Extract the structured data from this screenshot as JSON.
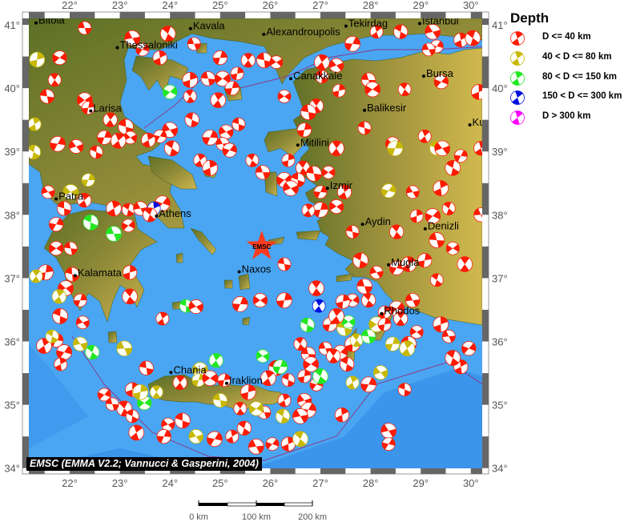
{
  "map": {
    "lon_range": [
      21.19,
      30.23
    ],
    "lat_range": [
      34.0,
      41.1
    ],
    "lon_ticks": [
      22,
      23,
      24,
      25,
      26,
      27,
      28,
      29,
      30
    ],
    "lat_ticks": [
      34,
      35,
      36,
      37,
      38,
      39,
      40,
      41
    ],
    "tick_suffix": "°",
    "colors": {
      "sea": "#4aa6f2",
      "deep_sea": "#2f86e6",
      "land_low": "#5f7228",
      "land_high": "#c9b24a",
      "plate_boundary": "#8a3a8a"
    }
  },
  "caption": "EMSC (EMMA V2.2; Vannucci & Gasperini, 2004)",
  "marker": {
    "label": "EMSC",
    "lon": 25.83,
    "lat": 37.5,
    "color": "#ff3b1f"
  },
  "legend": {
    "title": "Depth",
    "items": [
      {
        "label": "D <= 40 km",
        "color": "#ff1a00"
      },
      {
        "label": "40 < D <= 80 km",
        "color": "#c8b800"
      },
      {
        "label": "80 < D <= 150 km",
        "color": "#22e822"
      },
      {
        "label": "150 < D <= 300 km",
        "color": "#0010e0"
      },
      {
        "label": "D > 300 km",
        "color": "#ff00ff"
      }
    ]
  },
  "scale_bar": {
    "labels": [
      "0 km",
      "100 km",
      "200 km"
    ]
  },
  "cities": [
    {
      "name": "Bitola",
      "lon": 21.33,
      "lat": 41.03
    },
    {
      "name": "Kavala",
      "lon": 24.41,
      "lat": 40.94
    },
    {
      "name": "Alexandroupolis",
      "lon": 25.87,
      "lat": 40.85
    },
    {
      "name": "Tekirdag",
      "lon": 27.51,
      "lat": 40.98
    },
    {
      "name": "Istanbul",
      "lon": 28.98,
      "lat": 41.02
    },
    {
      "name": "Thessaloniki",
      "lon": 22.95,
      "lat": 40.64
    },
    {
      "name": "Canakkale",
      "lon": 26.41,
      "lat": 40.15
    },
    {
      "name": "Bursa",
      "lon": 29.06,
      "lat": 40.19
    },
    {
      "name": "Larisa",
      "lon": 22.42,
      "lat": 39.64
    },
    {
      "name": "Balikesir",
      "lon": 27.88,
      "lat": 39.65
    },
    {
      "name": "Kutahya",
      "lon": 29.98,
      "lat": 39.42
    },
    {
      "name": "Mitilini",
      "lon": 26.55,
      "lat": 39.1
    },
    {
      "name": "Izmir",
      "lon": 27.14,
      "lat": 38.42
    },
    {
      "name": "Athens",
      "lon": 23.73,
      "lat": 37.98
    },
    {
      "name": "Aydin",
      "lon": 27.84,
      "lat": 37.85
    },
    {
      "name": "Denizli",
      "lon": 29.09,
      "lat": 37.78
    },
    {
      "name": "Patra",
      "lon": 21.73,
      "lat": 38.25
    },
    {
      "name": "Naxos",
      "lon": 25.38,
      "lat": 37.1
    },
    {
      "name": "Mugla",
      "lon": 28.36,
      "lat": 37.21
    },
    {
      "name": "Kalamata",
      "lon": 22.11,
      "lat": 37.04
    },
    {
      "name": "Rhodos",
      "lon": 28.22,
      "lat": 36.44
    },
    {
      "name": "Chania",
      "lon": 24.02,
      "lat": 35.51
    },
    {
      "name": "Iraklion",
      "lon": 25.13,
      "lat": 35.34
    }
  ],
  "events": [
    [
      22.3,
      40.95,
      0
    ],
    [
      21.8,
      40.48,
      0
    ],
    [
      21.35,
      40.45,
      1
    ],
    [
      21.7,
      40.13,
      0
    ],
    [
      21.55,
      39.87,
      0
    ],
    [
      22.3,
      39.81,
      0
    ],
    [
      22.37,
      39.69,
      0
    ],
    [
      22.81,
      39.5,
      0
    ],
    [
      23.12,
      39.39,
      0
    ],
    [
      23.21,
      39.22,
      0
    ],
    [
      22.69,
      39.22,
      0
    ],
    [
      22.97,
      39.17,
      0
    ],
    [
      22.53,
      38.99,
      0
    ],
    [
      22.13,
      39.08,
      0
    ],
    [
      21.76,
      39.12,
      0
    ],
    [
      21.3,
      39.43,
      1
    ],
    [
      21.28,
      38.99,
      1
    ],
    [
      23.25,
      40.79,
      0
    ],
    [
      23.45,
      40.61,
      0
    ],
    [
      23.8,
      40.48,
      0
    ],
    [
      23.96,
      40.86,
      0
    ],
    [
      24.48,
      40.7,
      0
    ],
    [
      24.0,
      39.94,
      2
    ],
    [
      24.4,
      40.13,
      0
    ],
    [
      24.4,
      39.87,
      0
    ],
    [
      24.76,
      40.15,
      0
    ],
    [
      25.05,
      40.15,
      0
    ],
    [
      25.34,
      40.23,
      0
    ],
    [
      25.56,
      40.44,
      0
    ],
    [
      25.88,
      40.44,
      0
    ],
    [
      26.12,
      40.41,
      0
    ],
    [
      25.0,
      40.48,
      0
    ],
    [
      27.03,
      40.41,
      0
    ],
    [
      27.03,
      40.18,
      0
    ],
    [
      27.32,
      40.36,
      0
    ],
    [
      27.64,
      40.7,
      0
    ],
    [
      28.12,
      40.89,
      0
    ],
    [
      28.6,
      40.89,
      0
    ],
    [
      29.24,
      40.89,
      0
    ],
    [
      29.32,
      40.66,
      0
    ],
    [
      29.8,
      40.76,
      0
    ],
    [
      30.04,
      40.79,
      0
    ],
    [
      29.16,
      40.61,
      0
    ],
    [
      29.41,
      40.1,
      0
    ],
    [
      30.16,
      39.94,
      0
    ],
    [
      28.68,
      39.98,
      0
    ],
    [
      27.96,
      40.13,
      0
    ],
    [
      28.04,
      39.98,
      0
    ],
    [
      27.37,
      39.96,
      0
    ],
    [
      26.92,
      39.72,
      0
    ],
    [
      26.76,
      39.62,
      0
    ],
    [
      26.28,
      39.87,
      0
    ],
    [
      25.24,
      40.0,
      0
    ],
    [
      24.96,
      39.81,
      0
    ],
    [
      25.37,
      39.43,
      0
    ],
    [
      25.12,
      39.31,
      0
    ],
    [
      24.8,
      39.22,
      0
    ],
    [
      24.6,
      38.86,
      0
    ],
    [
      24.44,
      39.5,
      0
    ],
    [
      24.0,
      39.34,
      0
    ],
    [
      23.8,
      39.24,
      0
    ],
    [
      23.57,
      39.18,
      0
    ],
    [
      24.04,
      39.05,
      0
    ],
    [
      25.05,
      39.12,
      0
    ],
    [
      25.19,
      39.02,
      0
    ],
    [
      24.8,
      38.74,
      0
    ],
    [
      25.64,
      38.86,
      0
    ],
    [
      25.85,
      38.67,
      0
    ],
    [
      26.28,
      38.55,
      0
    ],
    [
      26.36,
      38.86,
      0
    ],
    [
      26.65,
      38.74,
      0
    ],
    [
      26.87,
      38.65,
      0
    ],
    [
      27.16,
      38.67,
      0
    ],
    [
      26.68,
      39.34,
      0
    ],
    [
      27.32,
      39.05,
      0
    ],
    [
      27.88,
      39.37,
      0
    ],
    [
      28.44,
      39.12,
      0
    ],
    [
      28.49,
      39.05,
      1
    ],
    [
      29.08,
      39.24,
      0
    ],
    [
      29.32,
      39.05,
      1
    ],
    [
      29.43,
      39.05,
      0
    ],
    [
      29.8,
      38.93,
      0
    ],
    [
      30.2,
      39.05,
      0
    ],
    [
      29.64,
      38.74,
      0
    ],
    [
      28.84,
      38.36,
      0
    ],
    [
      28.36,
      38.38,
      1
    ],
    [
      29.4,
      38.42,
      0
    ],
    [
      29.56,
      38.1,
      0
    ],
    [
      30.2,
      38.0,
      0
    ],
    [
      29.24,
      37.98,
      0
    ],
    [
      28.92,
      37.98,
      0
    ],
    [
      28.52,
      37.73,
      0
    ],
    [
      29.32,
      37.6,
      0
    ],
    [
      29.64,
      37.47,
      0
    ],
    [
      29.08,
      37.28,
      0
    ],
    [
      29.88,
      37.22,
      0
    ],
    [
      27.64,
      37.73,
      0
    ],
    [
      27.32,
      38.13,
      0
    ],
    [
      27.0,
      38.08,
      0
    ],
    [
      26.76,
      38.07,
      0
    ],
    [
      26.55,
      38.55,
      0
    ],
    [
      26.41,
      38.42,
      0
    ],
    [
      27.0,
      38.36,
      0
    ],
    [
      27.48,
      38.36,
      0
    ],
    [
      27.8,
      37.28,
      0
    ],
    [
      28.12,
      37.09,
      0
    ],
    [
      28.52,
      37.16,
      0
    ],
    [
      28.76,
      37.22,
      0
    ],
    [
      29.32,
      36.97,
      0
    ],
    [
      28.84,
      36.65,
      0
    ],
    [
      28.52,
      36.52,
      0
    ],
    [
      28.28,
      36.46,
      0
    ],
    [
      27.96,
      36.65,
      0
    ],
    [
      27.88,
      36.87,
      0
    ],
    [
      27.64,
      36.65,
      0
    ],
    [
      27.45,
      36.63,
      0
    ],
    [
      26.92,
      36.84,
      0
    ],
    [
      26.28,
      37.22,
      0
    ],
    [
      25.8,
      36.65,
      0
    ],
    [
      26.28,
      36.65,
      0
    ],
    [
      26.97,
      36.56,
      3
    ],
    [
      21.89,
      38.1,
      0
    ],
    [
      22.02,
      38.36,
      1
    ],
    [
      22.37,
      38.55,
      1
    ],
    [
      22.29,
      38.23,
      0
    ],
    [
      22.42,
      37.88,
      2
    ],
    [
      21.57,
      38.36,
      0
    ],
    [
      21.73,
      37.85,
      0
    ],
    [
      22.88,
      38.1,
      0
    ],
    [
      23.17,
      38.08,
      0
    ],
    [
      23.41,
      38.1,
      0
    ],
    [
      23.85,
      38.18,
      0
    ],
    [
      23.68,
      38.1,
      3
    ],
    [
      23.6,
      38.0,
      0
    ],
    [
      22.88,
      37.7,
      2
    ],
    [
      23.17,
      37.83,
      0
    ],
    [
      23.2,
      37.09,
      0
    ],
    [
      23.2,
      36.71,
      0
    ],
    [
      22.02,
      37.47,
      0
    ],
    [
      21.73,
      37.47,
      0
    ],
    [
      21.52,
      37.09,
      0
    ],
    [
      21.33,
      37.03,
      1
    ],
    [
      22.05,
      37.06,
      0
    ],
    [
      21.92,
      36.84,
      0
    ],
    [
      22.21,
      36.65,
      0
    ],
    [
      21.79,
      36.71,
      1
    ],
    [
      21.81,
      36.4,
      0
    ],
    [
      22.26,
      36.3,
      0
    ],
    [
      21.73,
      36.02,
      0
    ],
    [
      21.49,
      35.93,
      0
    ],
    [
      21.65,
      36.08,
      1
    ],
    [
      22.21,
      35.96,
      1
    ],
    [
      21.89,
      35.83,
      0
    ],
    [
      21.82,
      35.64,
      0
    ],
    [
      22.45,
      35.83,
      2
    ],
    [
      23.09,
      35.89,
      1
    ],
    [
      22.69,
      35.16,
      0
    ],
    [
      23.25,
      35.24,
      0
    ],
    [
      23.09,
      34.94,
      0
    ],
    [
      22.85,
      35.01,
      0
    ],
    [
      23.49,
      35.03,
      2
    ],
    [
      23.41,
      35.2,
      1
    ],
    [
      23.73,
      35.2,
      1
    ],
    [
      23.53,
      35.58,
      0
    ],
    [
      24.6,
      35.55,
      1
    ],
    [
      24.57,
      35.39,
      1
    ],
    [
      24.92,
      35.7,
      2
    ],
    [
      24.25,
      34.75,
      0
    ],
    [
      23.96,
      34.69,
      0
    ],
    [
      23.88,
      34.5,
      0
    ],
    [
      23.33,
      34.56,
      0
    ],
    [
      23.25,
      34.82,
      0
    ],
    [
      24.52,
      34.5,
      1
    ],
    [
      24.89,
      34.46,
      0
    ],
    [
      25.24,
      34.5,
      0
    ],
    [
      25.48,
      34.63,
      0
    ],
    [
      25.72,
      34.34,
      0
    ],
    [
      26.04,
      34.38,
      0
    ],
    [
      26.36,
      34.38,
      0
    ],
    [
      26.6,
      34.46,
      1
    ],
    [
      25.88,
      34.88,
      0
    ],
    [
      25.72,
      34.94,
      1
    ],
    [
      25.56,
      35.2,
      0
    ],
    [
      25.4,
      34.94,
      0
    ],
    [
      25.0,
      35.07,
      1
    ],
    [
      24.8,
      35.42,
      0
    ],
    [
      25.08,
      35.39,
      0
    ],
    [
      24.2,
      35.35,
      0
    ],
    [
      26.12,
      35.58,
      0
    ],
    [
      25.85,
      35.77,
      2
    ],
    [
      26.2,
      35.6,
      2
    ],
    [
      25.96,
      35.42,
      0
    ],
    [
      26.36,
      35.39,
      0
    ],
    [
      26.68,
      35.07,
      0
    ],
    [
      26.76,
      34.92,
      0
    ],
    [
      26.28,
      35.07,
      0
    ],
    [
      26.25,
      34.82,
      1
    ],
    [
      26.6,
      34.82,
      0
    ],
    [
      26.92,
      35.32,
      0
    ],
    [
      27.43,
      34.84,
      0
    ],
    [
      27.0,
      35.45,
      2
    ],
    [
      27.1,
      35.89,
      0
    ],
    [
      27.4,
      35.83,
      0
    ],
    [
      27.64,
      35.96,
      0
    ],
    [
      27.72,
      36.02,
      1
    ],
    [
      27.96,
      36.08,
      2
    ],
    [
      28.12,
      36.27,
      1
    ],
    [
      28.28,
      36.27,
      0
    ],
    [
      28.6,
      36.36,
      0
    ],
    [
      28.76,
      35.96,
      0
    ],
    [
      28.92,
      36.15,
      0
    ],
    [
      28.44,
      35.96,
      1
    ],
    [
      28.73,
      35.89,
      1
    ],
    [
      28.68,
      35.24,
      0
    ],
    [
      28.2,
      35.51,
      1
    ],
    [
      27.96,
      35.32,
      0
    ],
    [
      27.64,
      35.35,
      1
    ],
    [
      27.53,
      35.64,
      0
    ],
    [
      28.36,
      34.59,
      0
    ],
    [
      28.36,
      34.38,
      0
    ],
    [
      29.8,
      35.6,
      0
    ],
    [
      29.64,
      35.74,
      0
    ],
    [
      29.56,
      36.08,
      0
    ],
    [
      29.96,
      35.89,
      0
    ],
    [
      29.4,
      36.27,
      0
    ],
    [
      26.6,
      35.96,
      0
    ],
    [
      26.76,
      35.8,
      0
    ],
    [
      26.81,
      35.64,
      0
    ],
    [
      26.68,
      35.45,
      0
    ],
    [
      27.26,
      35.77,
      0
    ],
    [
      27.48,
      36.21,
      1
    ],
    [
      27.56,
      36.31,
      2
    ],
    [
      27.19,
      36.27,
      0
    ],
    [
      27.32,
      36.4,
      0
    ],
    [
      24.32,
      36.56,
      2
    ],
    [
      24.52,
      36.55,
      0
    ],
    [
      25.4,
      36.59,
      0
    ],
    [
      23.85,
      36.36,
      0
    ],
    [
      26.74,
      36.26,
      2
    ]
  ]
}
